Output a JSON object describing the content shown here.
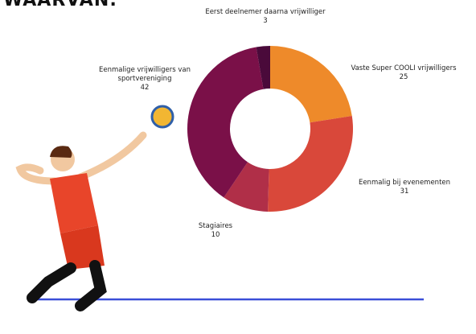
{
  "chart_data": {
    "type": "donut",
    "title": "WAARVAN:",
    "categories": [
      "Vaste Super COOLI vrijwilligers",
      "Eenmalig bij evenementen",
      "Stagiaires",
      "Eenmalige vrijwilligers van sportvereniging",
      "Eerst deelnemer daarna vrijwilliger"
    ],
    "values": [
      25,
      31,
      10,
      42,
      3
    ],
    "colors": [
      "#ee8a2a",
      "#d9483a",
      "#b02f48",
      "#7a1048",
      "#4a0a3a"
    ]
  }
}
